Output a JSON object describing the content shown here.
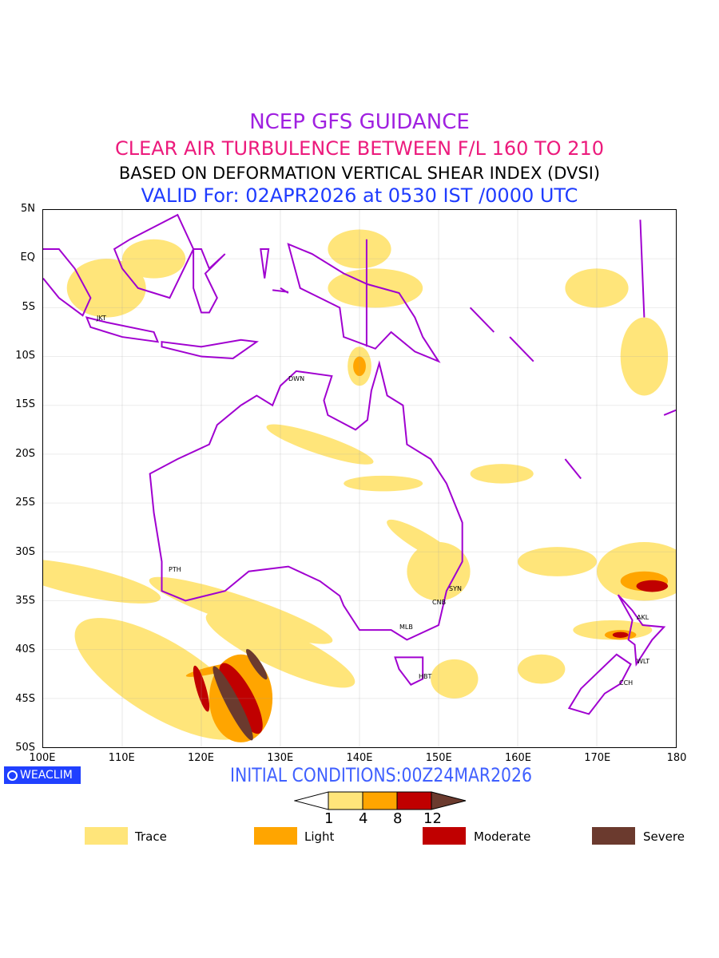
{
  "titles": {
    "line1": "NCEP GFS GUIDANCE",
    "line2": "CLEAR AIR TURBULENCE BETWEEN F/L 160 TO 210",
    "line3": "BASED ON DEFORMATION VERTICAL SHEAR INDEX (DVSI)",
    "line4": "VALID For: 02APR2026 at 0530 IST /0000 UTC"
  },
  "axes": {
    "lat_labels": [
      "5N",
      "EQ",
      "5S",
      "10S",
      "15S",
      "20S",
      "25S",
      "30S",
      "35S",
      "40S",
      "45S",
      "50S"
    ],
    "lon_labels": [
      "100E",
      "110E",
      "120E",
      "130E",
      "140E",
      "150E",
      "160E",
      "170E",
      "180"
    ]
  },
  "cities": [
    "JKT",
    "DWN",
    "PTH",
    "SYN",
    "CNB",
    "MLB",
    "HBT",
    "AKL",
    "WLT",
    "CCH"
  ],
  "logo": "WEACLIM",
  "initial_conditions": "INITIAL CONDITIONS:00Z24MAR2026",
  "colorbar": {
    "ticks": [
      "1",
      "4",
      "8",
      "12"
    ],
    "colors": [
      "#ffe57a",
      "#ffa500",
      "#c00000",
      "#6b3a2e"
    ]
  },
  "legend": [
    {
      "label": "Trace",
      "color": "#ffe57a"
    },
    {
      "label": "Light",
      "color": "#ffa500"
    },
    {
      "label": "Moderate",
      "color": "#c00000"
    },
    {
      "label": "Severe",
      "color": "#6b3a2e"
    }
  ],
  "colors": {
    "coast": "#a000d0",
    "grid": "#a0a0a0"
  }
}
